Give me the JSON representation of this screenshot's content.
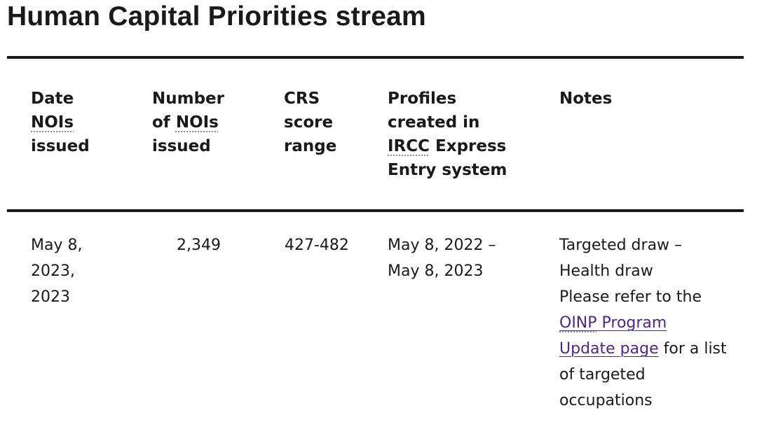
{
  "page": {
    "title": "Human Capital Priorities stream"
  },
  "table": {
    "headers": {
      "date": {
        "w1": "Date",
        "abbr": "NOIs",
        "w3": "issued"
      },
      "number": {
        "w1": "Number",
        "pre": "of ",
        "abbr": "NOIs",
        "w3": "issued"
      },
      "crs": {
        "w1": "CRS",
        "w2": "score",
        "w3": "range"
      },
      "profiles": {
        "w1": "Profiles",
        "w2": "created in",
        "abbr": "IRCC",
        "post": " Express",
        "w4": "Entry system"
      },
      "notes": {
        "w1": "Notes"
      }
    },
    "rows": [
      {
        "date": {
          "l1": "May 8,",
          "l2": "2023,",
          "l3": "2023"
        },
        "number": "2,349",
        "crs": "427-482",
        "profiles": {
          "l1": "May 8, 2022 –",
          "l2": "May 8, 2023"
        },
        "notes": {
          "l1": "Targeted draw –",
          "l2": "Health draw",
          "l3": "Please refer to the",
          "link_abbr": "OINP",
          "link_rest": " Program",
          "link_l2": "Update page",
          "after_link": " for a list",
          "l6": "of targeted",
          "l7": "occupations"
        }
      }
    ]
  }
}
